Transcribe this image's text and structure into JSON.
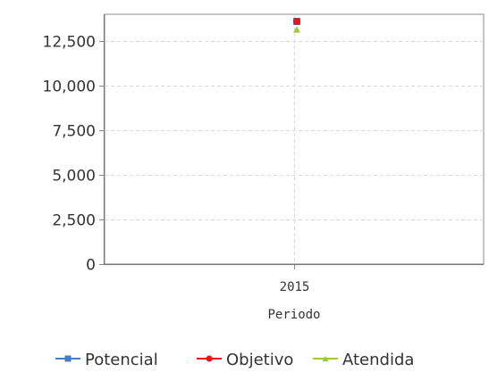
{
  "chart_data": {
    "type": "line",
    "xlabel": "Periodo",
    "ylabel": "",
    "categories": [
      "2015"
    ],
    "ylim": [
      0,
      14000
    ],
    "yticks": [
      0,
      2500,
      5000,
      7500,
      10000,
      12500
    ],
    "ytick_labels": [
      "0",
      "2,500",
      "5,000",
      "7,500",
      "10,000",
      "12,500"
    ],
    "grid": true,
    "legend_position": "bottom",
    "series": [
      {
        "name": "Potencial",
        "values": [
          13600
        ],
        "color": "#4a7ebb",
        "marker": "square"
      },
      {
        "name": "Objetivo",
        "values": [
          13600
        ],
        "color": "#e8141c",
        "marker": "circle"
      },
      {
        "name": "Atendida",
        "values": [
          13150
        ],
        "color": "#9acd32",
        "marker": "triangle"
      }
    ]
  }
}
